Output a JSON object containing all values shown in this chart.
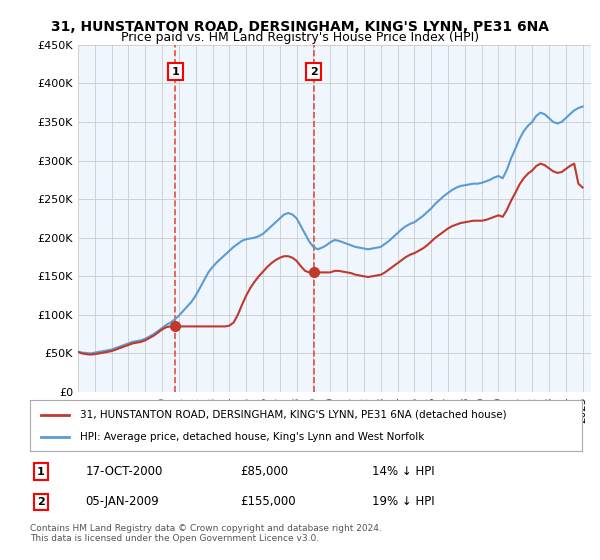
{
  "title_line1": "31, HUNSTANTON ROAD, DERSINGHAM, KING'S LYNN, PE31 6NA",
  "title_line2": "Price paid vs. HM Land Registry's House Price Index (HPI)",
  "ylabel_ticks": [
    "£0",
    "£50K",
    "£100K",
    "£150K",
    "£200K",
    "£250K",
    "£300K",
    "£350K",
    "£400K",
    "£450K"
  ],
  "ylim": [
    0,
    450000
  ],
  "xlim_start": 1995.0,
  "xlim_end": 2025.5,
  "hpi_color": "#5b9bd5",
  "price_color": "#c0392b",
  "vline_color": "#e74c3c",
  "purchase1_x": 2000.79,
  "purchase1_y": 85000,
  "purchase2_x": 2009.01,
  "purchase2_y": 155000,
  "legend_label1": "31, HUNSTANTON ROAD, DERSINGHAM, KING'S LYNN, PE31 6NA (detached house)",
  "legend_label2": "HPI: Average price, detached house, King's Lynn and West Norfolk",
  "annotation1_date": "17-OCT-2000",
  "annotation1_price": "£85,000",
  "annotation1_hpi": "14% ↓ HPI",
  "annotation2_date": "05-JAN-2009",
  "annotation2_price": "£155,000",
  "annotation2_hpi": "19% ↓ HPI",
  "footer": "Contains HM Land Registry data © Crown copyright and database right 2024.\nThis data is licensed under the Open Government Licence v3.0.",
  "background_color": "#eaf2fb",
  "plot_bg_color": "#ffffff",
  "hpi_data": [
    [
      1995.0,
      52000
    ],
    [
      1995.25,
      51000
    ],
    [
      1995.5,
      50500
    ],
    [
      1995.75,
      50000
    ],
    [
      1996.0,
      51000
    ],
    [
      1996.25,
      52000
    ],
    [
      1996.5,
      53000
    ],
    [
      1996.75,
      54000
    ],
    [
      1997.0,
      55000
    ],
    [
      1997.25,
      57000
    ],
    [
      1997.5,
      59000
    ],
    [
      1997.75,
      61000
    ],
    [
      1998.0,
      63000
    ],
    [
      1998.25,
      65000
    ],
    [
      1998.5,
      66000
    ],
    [
      1998.75,
      67000
    ],
    [
      1999.0,
      69000
    ],
    [
      1999.25,
      72000
    ],
    [
      1999.5,
      75000
    ],
    [
      1999.75,
      79000
    ],
    [
      2000.0,
      83000
    ],
    [
      2000.25,
      87000
    ],
    [
      2000.5,
      90000
    ],
    [
      2000.75,
      94000
    ],
    [
      2001.0,
      99000
    ],
    [
      2001.25,
      105000
    ],
    [
      2001.5,
      111000
    ],
    [
      2001.75,
      117000
    ],
    [
      2002.0,
      125000
    ],
    [
      2002.25,
      135000
    ],
    [
      2002.5,
      145000
    ],
    [
      2002.75,
      155000
    ],
    [
      2003.0,
      162000
    ],
    [
      2003.25,
      168000
    ],
    [
      2003.5,
      173000
    ],
    [
      2003.75,
      178000
    ],
    [
      2004.0,
      183000
    ],
    [
      2004.25,
      188000
    ],
    [
      2004.5,
      192000
    ],
    [
      2004.75,
      196000
    ],
    [
      2005.0,
      198000
    ],
    [
      2005.25,
      199000
    ],
    [
      2005.5,
      200000
    ],
    [
      2005.75,
      202000
    ],
    [
      2006.0,
      205000
    ],
    [
      2006.25,
      210000
    ],
    [
      2006.5,
      215000
    ],
    [
      2006.75,
      220000
    ],
    [
      2007.0,
      225000
    ],
    [
      2007.25,
      230000
    ],
    [
      2007.5,
      232000
    ],
    [
      2007.75,
      230000
    ],
    [
      2008.0,
      225000
    ],
    [
      2008.25,
      215000
    ],
    [
      2008.5,
      205000
    ],
    [
      2008.75,
      195000
    ],
    [
      2009.0,
      188000
    ],
    [
      2009.25,
      185000
    ],
    [
      2009.5,
      187000
    ],
    [
      2009.75,
      190000
    ],
    [
      2010.0,
      194000
    ],
    [
      2010.25,
      197000
    ],
    [
      2010.5,
      196000
    ],
    [
      2010.75,
      194000
    ],
    [
      2011.0,
      192000
    ],
    [
      2011.25,
      190000
    ],
    [
      2011.5,
      188000
    ],
    [
      2011.75,
      187000
    ],
    [
      2012.0,
      186000
    ],
    [
      2012.25,
      185000
    ],
    [
      2012.5,
      186000
    ],
    [
      2012.75,
      187000
    ],
    [
      2013.0,
      188000
    ],
    [
      2013.25,
      192000
    ],
    [
      2013.5,
      196000
    ],
    [
      2013.75,
      201000
    ],
    [
      2014.0,
      206000
    ],
    [
      2014.25,
      211000
    ],
    [
      2014.5,
      215000
    ],
    [
      2014.75,
      218000
    ],
    [
      2015.0,
      220000
    ],
    [
      2015.25,
      224000
    ],
    [
      2015.5,
      228000
    ],
    [
      2015.75,
      233000
    ],
    [
      2016.0,
      238000
    ],
    [
      2016.25,
      244000
    ],
    [
      2016.5,
      249000
    ],
    [
      2016.75,
      254000
    ],
    [
      2017.0,
      258000
    ],
    [
      2017.25,
      262000
    ],
    [
      2017.5,
      265000
    ],
    [
      2017.75,
      267000
    ],
    [
      2018.0,
      268000
    ],
    [
      2018.25,
      269000
    ],
    [
      2018.5,
      270000
    ],
    [
      2018.75,
      270000
    ],
    [
      2019.0,
      271000
    ],
    [
      2019.25,
      273000
    ],
    [
      2019.5,
      275000
    ],
    [
      2019.75,
      278000
    ],
    [
      2020.0,
      280000
    ],
    [
      2020.25,
      277000
    ],
    [
      2020.5,
      288000
    ],
    [
      2020.75,
      303000
    ],
    [
      2021.0,
      315000
    ],
    [
      2021.25,
      328000
    ],
    [
      2021.5,
      338000
    ],
    [
      2021.75,
      345000
    ],
    [
      2022.0,
      350000
    ],
    [
      2022.25,
      358000
    ],
    [
      2022.5,
      362000
    ],
    [
      2022.75,
      360000
    ],
    [
      2023.0,
      355000
    ],
    [
      2023.25,
      350000
    ],
    [
      2023.5,
      348000
    ],
    [
      2023.75,
      350000
    ],
    [
      2024.0,
      355000
    ],
    [
      2024.25,
      360000
    ],
    [
      2024.5,
      365000
    ],
    [
      2024.75,
      368000
    ],
    [
      2025.0,
      370000
    ]
  ],
  "price_data": [
    [
      1995.0,
      52000
    ],
    [
      1995.25,
      50000
    ],
    [
      1995.5,
      49000
    ],
    [
      1995.75,
      48500
    ],
    [
      1996.0,
      49000
    ],
    [
      1996.25,
      50000
    ],
    [
      1996.5,
      51000
    ],
    [
      1996.75,
      52000
    ],
    [
      1997.0,
      53000
    ],
    [
      1997.25,
      55000
    ],
    [
      1997.5,
      57000
    ],
    [
      1997.75,
      59000
    ],
    [
      1998.0,
      61000
    ],
    [
      1998.25,
      63000
    ],
    [
      1998.5,
      64000
    ],
    [
      1998.75,
      65000
    ],
    [
      1999.0,
      67000
    ],
    [
      1999.25,
      70000
    ],
    [
      1999.5,
      73000
    ],
    [
      1999.75,
      77000
    ],
    [
      2000.0,
      81000
    ],
    [
      2000.25,
      84000
    ],
    [
      2000.5,
      85000
    ],
    [
      2000.75,
      85000
    ],
    [
      2001.0,
      85000
    ],
    [
      2001.25,
      85000
    ],
    [
      2001.5,
      85000
    ],
    [
      2001.75,
      85000
    ],
    [
      2002.0,
      85000
    ],
    [
      2002.25,
      85000
    ],
    [
      2002.5,
      85000
    ],
    [
      2002.75,
      85000
    ],
    [
      2003.0,
      85000
    ],
    [
      2003.25,
      85000
    ],
    [
      2003.5,
      85000
    ],
    [
      2003.75,
      85000
    ],
    [
      2004.0,
      86000
    ],
    [
      2004.25,
      90000
    ],
    [
      2004.5,
      100000
    ],
    [
      2004.75,
      113000
    ],
    [
      2005.0,
      125000
    ],
    [
      2005.25,
      135000
    ],
    [
      2005.5,
      143000
    ],
    [
      2005.75,
      150000
    ],
    [
      2006.0,
      156000
    ],
    [
      2006.25,
      162000
    ],
    [
      2006.5,
      167000
    ],
    [
      2006.75,
      171000
    ],
    [
      2007.0,
      174000
    ],
    [
      2007.25,
      176000
    ],
    [
      2007.5,
      176000
    ],
    [
      2007.75,
      174000
    ],
    [
      2008.0,
      170000
    ],
    [
      2008.25,
      163000
    ],
    [
      2008.5,
      157000
    ],
    [
      2008.75,
      155000
    ],
    [
      2009.0,
      155000
    ],
    [
      2009.25,
      155000
    ],
    [
      2009.5,
      155000
    ],
    [
      2009.75,
      155000
    ],
    [
      2010.0,
      155000
    ],
    [
      2010.25,
      157000
    ],
    [
      2010.5,
      157000
    ],
    [
      2010.75,
      156000
    ],
    [
      2011.0,
      155000
    ],
    [
      2011.25,
      154000
    ],
    [
      2011.5,
      152000
    ],
    [
      2011.75,
      151000
    ],
    [
      2012.0,
      150000
    ],
    [
      2012.25,
      149000
    ],
    [
      2012.5,
      150000
    ],
    [
      2012.75,
      151000
    ],
    [
      2013.0,
      152000
    ],
    [
      2013.25,
      155000
    ],
    [
      2013.5,
      159000
    ],
    [
      2013.75,
      163000
    ],
    [
      2014.0,
      167000
    ],
    [
      2014.25,
      171000
    ],
    [
      2014.5,
      175000
    ],
    [
      2014.75,
      178000
    ],
    [
      2015.0,
      180000
    ],
    [
      2015.25,
      183000
    ],
    [
      2015.5,
      186000
    ],
    [
      2015.75,
      190000
    ],
    [
      2016.0,
      195000
    ],
    [
      2016.25,
      200000
    ],
    [
      2016.5,
      204000
    ],
    [
      2016.75,
      208000
    ],
    [
      2017.0,
      212000
    ],
    [
      2017.25,
      215000
    ],
    [
      2017.5,
      217000
    ],
    [
      2017.75,
      219000
    ],
    [
      2018.0,
      220000
    ],
    [
      2018.25,
      221000
    ],
    [
      2018.5,
      222000
    ],
    [
      2018.75,
      222000
    ],
    [
      2019.0,
      222000
    ],
    [
      2019.25,
      223000
    ],
    [
      2019.5,
      225000
    ],
    [
      2019.75,
      227000
    ],
    [
      2020.0,
      229000
    ],
    [
      2020.25,
      227000
    ],
    [
      2020.5,
      236000
    ],
    [
      2020.75,
      248000
    ],
    [
      2021.0,
      258000
    ],
    [
      2021.25,
      269000
    ],
    [
      2021.5,
      277000
    ],
    [
      2021.75,
      283000
    ],
    [
      2022.0,
      287000
    ],
    [
      2022.25,
      293000
    ],
    [
      2022.5,
      296000
    ],
    [
      2022.75,
      294000
    ],
    [
      2023.0,
      290000
    ],
    [
      2023.25,
      286000
    ],
    [
      2023.5,
      284000
    ],
    [
      2023.75,
      285000
    ],
    [
      2024.0,
      289000
    ],
    [
      2024.25,
      293000
    ],
    [
      2024.5,
      296000
    ],
    [
      2024.75,
      270000
    ],
    [
      2025.0,
      265000
    ]
  ]
}
